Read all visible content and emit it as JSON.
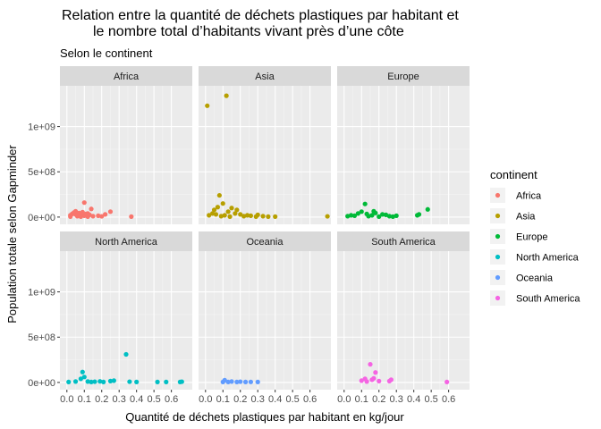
{
  "chart": {
    "title_line1": "Relation entre la quantité de déchets plastiques par habitant et",
    "title_line2": "le nombre total d’habitants vivant près d’une côte",
    "subtitle": "Selon le continent"
  },
  "chart_data": {
    "type": "scatter",
    "title": "Relation entre la quantité de déchets plastiques par habitant et le nombre total d’habitants vivant près d’une côte",
    "subtitle": "Selon le continent",
    "xlabel": "Quantité de déchets plastiques par habitant en kg/jour",
    "ylabel": "Population totale selon Gapminder",
    "xlim": [
      -0.04,
      0.72
    ],
    "ylim": [
      -80000000,
      1450000000
    ],
    "x_ticks": [
      0.0,
      0.1,
      0.2,
      0.3,
      0.4,
      0.5,
      0.6
    ],
    "x_tick_labels": [
      "0.0",
      "0.1",
      "0.2",
      "0.3",
      "0.4",
      "0.5",
      "0.6"
    ],
    "y_ticks": [
      0,
      500000000,
      1000000000
    ],
    "y_tick_labels": [
      "0e+00",
      "5e+08",
      "1e+09"
    ],
    "grid": true,
    "legend": {
      "title": "continent",
      "placement": "right",
      "entries": [
        {
          "label": "Africa",
          "color": "#F8766D"
        },
        {
          "label": "Asia",
          "color": "#B79F00"
        },
        {
          "label": "Europe",
          "color": "#00BA38"
        },
        {
          "label": "North America",
          "color": "#00BFC4"
        },
        {
          "label": "Oceania",
          "color": "#619CFF"
        },
        {
          "label": "South America",
          "color": "#F564E3"
        }
      ]
    },
    "facets": [
      {
        "label": "Africa",
        "color": "#F8766D",
        "points": [
          [
            0.02,
            20000000
          ],
          [
            0.03,
            35000000
          ],
          [
            0.04,
            50000000
          ],
          [
            0.05,
            30000000
          ],
          [
            0.05,
            65000000
          ],
          [
            0.06,
            10000000
          ],
          [
            0.07,
            45000000
          ],
          [
            0.08,
            25000000
          ],
          [
            0.09,
            55000000
          ],
          [
            0.1,
            160000000
          ],
          [
            0.1,
            15000000
          ],
          [
            0.11,
            35000000
          ],
          [
            0.12,
            5000000
          ],
          [
            0.13,
            25000000
          ],
          [
            0.14,
            90000000
          ],
          [
            0.15,
            10000000
          ],
          [
            0.18,
            15000000
          ],
          [
            0.22,
            30000000
          ],
          [
            0.25,
            60000000
          ],
          [
            0.37,
            5000000
          ],
          [
            0.02,
            5000000
          ],
          [
            0.06,
            20000000
          ],
          [
            0.08,
            5000000
          ],
          [
            0.12,
            40000000
          ],
          [
            0.2,
            8000000
          ]
        ]
      },
      {
        "label": "Asia",
        "color": "#B79F00",
        "points": [
          [
            0.01,
            1230000000
          ],
          [
            0.12,
            1340000000
          ],
          [
            0.08,
            240000000
          ],
          [
            0.1,
            150000000
          ],
          [
            0.05,
            80000000
          ],
          [
            0.07,
            110000000
          ],
          [
            0.13,
            60000000
          ],
          [
            0.15,
            100000000
          ],
          [
            0.17,
            40000000
          ],
          [
            0.18,
            80000000
          ],
          [
            0.2,
            30000000
          ],
          [
            0.22,
            10000000
          ],
          [
            0.24,
            20000000
          ],
          [
            0.26,
            15000000
          ],
          [
            0.29,
            5000000
          ],
          [
            0.3,
            25000000
          ],
          [
            0.33,
            10000000
          ],
          [
            0.36,
            5000000
          ],
          [
            0.4,
            5000000
          ],
          [
            0.02,
            20000000
          ],
          [
            0.04,
            40000000
          ],
          [
            0.06,
            30000000
          ],
          [
            0.09,
            10000000
          ],
          [
            0.11,
            20000000
          ],
          [
            0.14,
            5000000
          ],
          [
            0.7,
            8000000
          ]
        ]
      },
      {
        "label": "Europe",
        "color": "#00BA38",
        "points": [
          [
            0.02,
            10000000
          ],
          [
            0.04,
            20000000
          ],
          [
            0.06,
            15000000
          ],
          [
            0.08,
            40000000
          ],
          [
            0.1,
            60000000
          ],
          [
            0.12,
            145000000
          ],
          [
            0.13,
            35000000
          ],
          [
            0.14,
            10000000
          ],
          [
            0.16,
            20000000
          ],
          [
            0.17,
            65000000
          ],
          [
            0.18,
            45000000
          ],
          [
            0.2,
            5000000
          ],
          [
            0.22,
            30000000
          ],
          [
            0.24,
            25000000
          ],
          [
            0.26,
            10000000
          ],
          [
            0.28,
            5000000
          ],
          [
            0.3,
            15000000
          ],
          [
            0.42,
            20000000
          ],
          [
            0.43,
            30000000
          ],
          [
            0.48,
            85000000
          ]
        ]
      },
      {
        "label": "North America",
        "color": "#00BFC4",
        "points": [
          [
            0.01,
            5000000
          ],
          [
            0.05,
            10000000
          ],
          [
            0.08,
            40000000
          ],
          [
            0.09,
            115000000
          ],
          [
            0.1,
            60000000
          ],
          [
            0.12,
            10000000
          ],
          [
            0.14,
            5000000
          ],
          [
            0.16,
            8000000
          ],
          [
            0.19,
            12000000
          ],
          [
            0.21,
            5000000
          ],
          [
            0.25,
            15000000
          ],
          [
            0.27,
            20000000
          ],
          [
            0.34,
            310000000
          ],
          [
            0.36,
            8000000
          ],
          [
            0.4,
            5000000
          ],
          [
            0.52,
            5000000
          ],
          [
            0.57,
            5000000
          ],
          [
            0.65,
            5000000
          ],
          [
            0.66,
            8000000
          ]
        ]
      },
      {
        "label": "Oceania",
        "color": "#619CFF",
        "points": [
          [
            0.1,
            5000000
          ],
          [
            0.11,
            25000000
          ],
          [
            0.13,
            5000000
          ],
          [
            0.15,
            10000000
          ],
          [
            0.18,
            5000000
          ],
          [
            0.2,
            8000000
          ],
          [
            0.23,
            5000000
          ],
          [
            0.26,
            6000000
          ],
          [
            0.3,
            5000000
          ]
        ]
      },
      {
        "label": "South America",
        "color": "#F564E3",
        "points": [
          [
            0.1,
            20000000
          ],
          [
            0.12,
            40000000
          ],
          [
            0.13,
            10000000
          ],
          [
            0.15,
            200000000
          ],
          [
            0.16,
            30000000
          ],
          [
            0.17,
            45000000
          ],
          [
            0.18,
            110000000
          ],
          [
            0.2,
            15000000
          ],
          [
            0.26,
            15000000
          ],
          [
            0.27,
            30000000
          ],
          [
            0.59,
            5000000
          ]
        ]
      }
    ]
  }
}
